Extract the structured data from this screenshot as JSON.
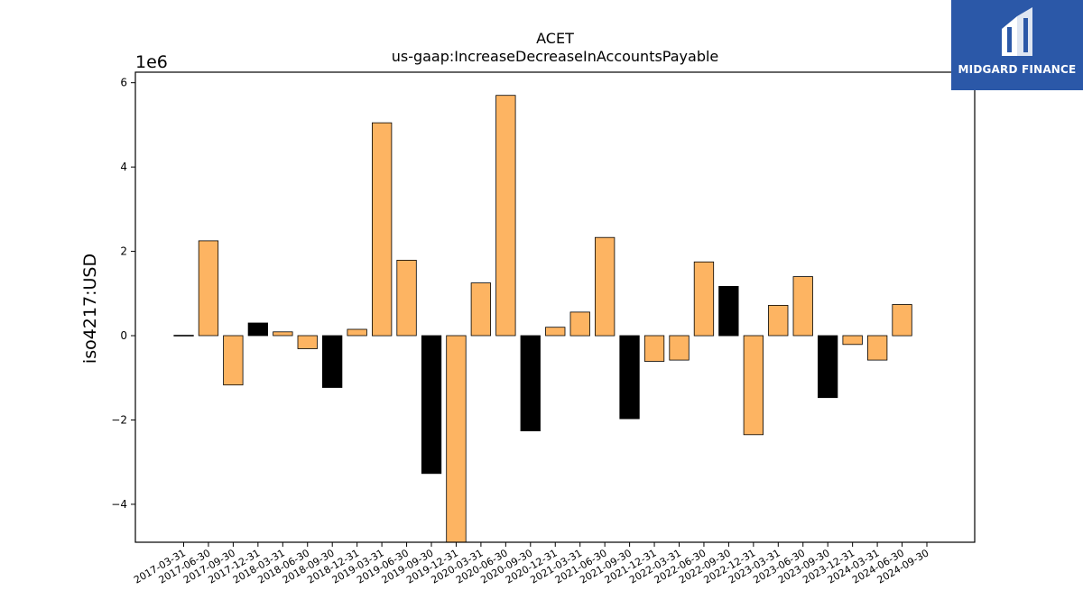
{
  "logo": {
    "text": "MIDGARD FINANCE",
    "bg_color": "#2b58a8"
  },
  "chart_data": {
    "type": "bar",
    "title": "ACET",
    "subtitle": "us-gaap:IncreaseDecreaseInAccountsPayable",
    "ylabel": "iso4217:USD",
    "xlabel": "",
    "y_scale_label": "1e6",
    "ylim": [
      -4.9,
      6.25
    ],
    "yticks": [
      -4,
      -2,
      0,
      2,
      4,
      6
    ],
    "yticklabels": [
      "−4",
      "−2",
      "0",
      "2",
      "4",
      "6"
    ],
    "grid": false,
    "categories": [
      "2017-03-31",
      "2017-06-30",
      "2017-09-30",
      "2017-12-31",
      "2018-03-31",
      "2018-06-30",
      "2018-09-30",
      "2018-12-31",
      "2019-03-31",
      "2019-06-30",
      "2019-09-30",
      "2019-12-31",
      "2020-03-31",
      "2020-06-30",
      "2020-09-30",
      "2020-12-31",
      "2021-03-31",
      "2021-06-30",
      "2021-09-30",
      "2021-12-31",
      "2022-03-31",
      "2022-06-30",
      "2022-09-30",
      "2022-12-31",
      "2023-03-31",
      "2023-06-30",
      "2023-09-30",
      "2023-12-31",
      "2024-03-31",
      "2024-06-30",
      "2024-09-30"
    ],
    "values": [
      0.01,
      2.25,
      -1.17,
      0.3,
      0.09,
      -0.31,
      -1.23,
      0.15,
      5.05,
      1.79,
      -3.27,
      -5.0,
      1.25,
      5.7,
      -2.26,
      0.2,
      0.56,
      2.33,
      -1.97,
      -0.61,
      -0.58,
      1.75,
      1.17,
      -2.35,
      0.72,
      1.4,
      -1.47,
      -0.21,
      -0.58,
      0.74,
      0.0
    ],
    "colors": [
      "#fdb462",
      "#fdb462",
      "#fdb462",
      "#000000",
      "#fdb462",
      "#fdb462",
      "#000000",
      "#fdb462",
      "#fdb462",
      "#fdb462",
      "#000000",
      "#fdb462",
      "#fdb462",
      "#fdb462",
      "#000000",
      "#fdb462",
      "#fdb462",
      "#fdb462",
      "#000000",
      "#fdb462",
      "#fdb462",
      "#fdb462",
      "#000000",
      "#fdb462",
      "#fdb462",
      "#fdb462",
      "#000000",
      "#fdb462",
      "#fdb462",
      "#fdb462",
      "#fdb462"
    ],
    "bar_color": "#fdb462",
    "highlight_color": "#000000"
  }
}
